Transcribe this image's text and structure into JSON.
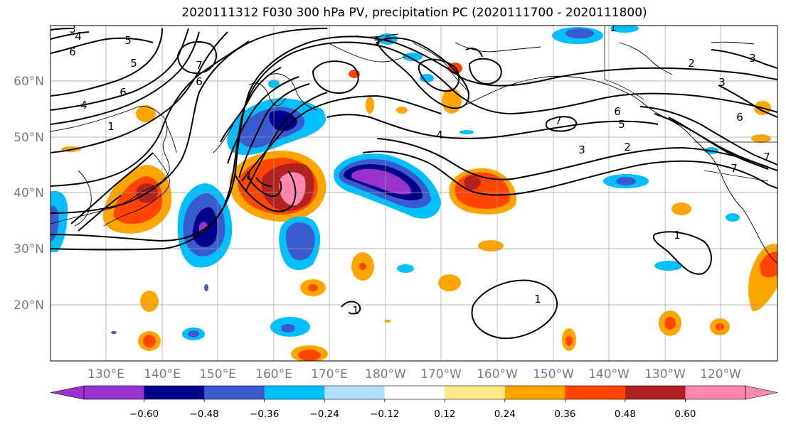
{
  "title": "2020111312 F030 300 hPa PV, precipitation PC (2020111700 - 2020111800)",
  "lat_labels": [
    "60°N",
    "50°N",
    "40°N",
    "30°N",
    "20°N"
  ],
  "lon_labels": [
    "130°E",
    "140°E",
    "150°E",
    "160°E",
    "170°E",
    "180°W",
    "170°W",
    "160°W",
    "150°W",
    "140°W",
    "130°W",
    "120°W"
  ],
  "colorbar": {
    "colors": [
      "#9932cc",
      "#00008b",
      "#3a5bcd",
      "#00bfff",
      "#b0e2ff",
      "#ffffff",
      "#ffe98a",
      "#ffa500",
      "#ff4500",
      "#b22222",
      "#ff88b0"
    ],
    "tick_labels": [
      "−0.60",
      "−0.48",
      "−0.36",
      "−0.24",
      "−0.12",
      "0.12",
      "0.24",
      "0.36",
      "0.48",
      "0.60"
    ]
  },
  "pv_contour_labels": [
    "3",
    "4",
    "5",
    "6",
    "5",
    "6",
    "4",
    "1",
    "6",
    "7",
    "5",
    "1",
    "3",
    "2",
    "3",
    "6",
    "7",
    "5",
    "6",
    "7",
    "4",
    "3",
    "2",
    "7",
    "1",
    "1",
    "1",
    "1"
  ]
}
